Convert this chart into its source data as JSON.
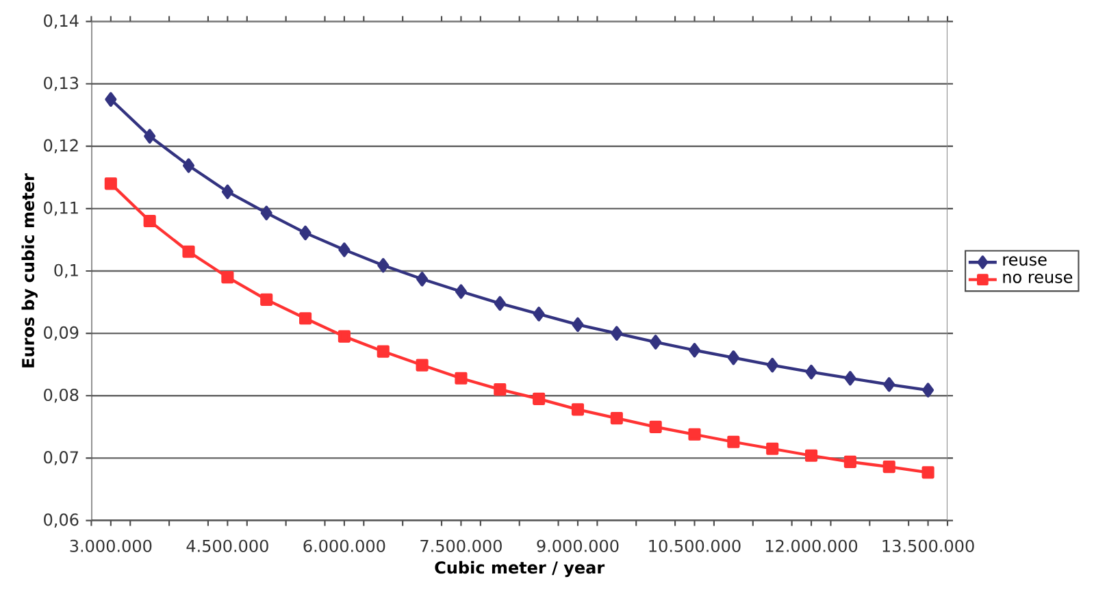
{
  "chart_data": {
    "type": "line",
    "xlabel": "Cubic meter / year",
    "ylabel": "Euros by cubic meter",
    "x": [
      3000000,
      3500000,
      4000000,
      4500000,
      5000000,
      5500000,
      6000000,
      6500000,
      7000000,
      7500000,
      8000000,
      8500000,
      9000000,
      9500000,
      10000000,
      10500000,
      11000000,
      11500000,
      12000000,
      12500000,
      13000000,
      13500000
    ],
    "series": [
      {
        "name": "reuse",
        "color": "#333380",
        "marker": "diamond",
        "values": [
          0.1275,
          0.1216,
          0.1169,
          0.1127,
          0.1093,
          0.1061,
          0.1034,
          0.1009,
          0.0987,
          0.0967,
          0.0948,
          0.0931,
          0.0914,
          0.09,
          0.0886,
          0.0873,
          0.0861,
          0.0849,
          0.0838,
          0.0828,
          0.0818,
          0.0809
        ]
      },
      {
        "name": "no reuse",
        "color": "#ff3333",
        "marker": "square",
        "values": [
          0.114,
          0.108,
          0.1031,
          0.099,
          0.0954,
          0.0924,
          0.0895,
          0.0871,
          0.0849,
          0.0828,
          0.081,
          0.0795,
          0.0778,
          0.0764,
          0.075,
          0.0738,
          0.0726,
          0.0715,
          0.0704,
          0.0694,
          0.0686,
          0.0677
        ]
      }
    ],
    "xlim": [
      2750000,
      13750000
    ],
    "xticks": [
      {
        "value": 3000000,
        "label": "3.000.000"
      },
      {
        "value": 4500000,
        "label": "4.500.000"
      },
      {
        "value": 6000000,
        "label": "6.000.000"
      },
      {
        "value": 7500000,
        "label": "7.500.000"
      },
      {
        "value": 9000000,
        "label": "9.000.000"
      },
      {
        "value": 10500000,
        "label": "10.500.000"
      },
      {
        "value": 12000000,
        "label": "12.000.000"
      },
      {
        "value": 13500000,
        "label": "13.500.000"
      },
      {
        "value": 2750000,
        "label": null
      },
      {
        "value": 3250000,
        "label": null
      },
      {
        "value": 3750000,
        "label": null
      },
      {
        "value": 4250000,
        "label": null
      },
      {
        "value": 4750000,
        "label": null
      },
      {
        "value": 5250000,
        "label": null
      },
      {
        "value": 5750000,
        "label": null
      },
      {
        "value": 6250000,
        "label": null
      },
      {
        "value": 6750000,
        "label": null
      },
      {
        "value": 7250000,
        "label": null
      },
      {
        "value": 7750000,
        "label": null
      },
      {
        "value": 8250000,
        "label": null
      },
      {
        "value": 8750000,
        "label": null
      },
      {
        "value": 9250000,
        "label": null
      },
      {
        "value": 9750000,
        "label": null
      },
      {
        "value": 10250000,
        "label": null
      },
      {
        "value": 10750000,
        "label": null
      },
      {
        "value": 11250000,
        "label": null
      },
      {
        "value": 11750000,
        "label": null
      },
      {
        "value": 12250000,
        "label": null
      },
      {
        "value": 12750000,
        "label": null
      },
      {
        "value": 13250000,
        "label": null
      },
      {
        "value": 13750000,
        "label": null
      }
    ],
    "ylim": [
      0.06,
      0.14
    ],
    "yticks": [
      {
        "value": 0.06,
        "label": "0,06"
      },
      {
        "value": 0.07,
        "label": "0,07"
      },
      {
        "value": 0.08,
        "label": "0,08"
      },
      {
        "value": 0.09,
        "label": "0,09"
      },
      {
        "value": 0.1,
        "label": "0,1"
      },
      {
        "value": 0.11,
        "label": "0,11"
      },
      {
        "value": 0.12,
        "label": "0,12"
      },
      {
        "value": 0.13,
        "label": "0,13"
      },
      {
        "value": 0.14,
        "label": "0,14"
      }
    ],
    "grid": "y",
    "legend": "right"
  }
}
